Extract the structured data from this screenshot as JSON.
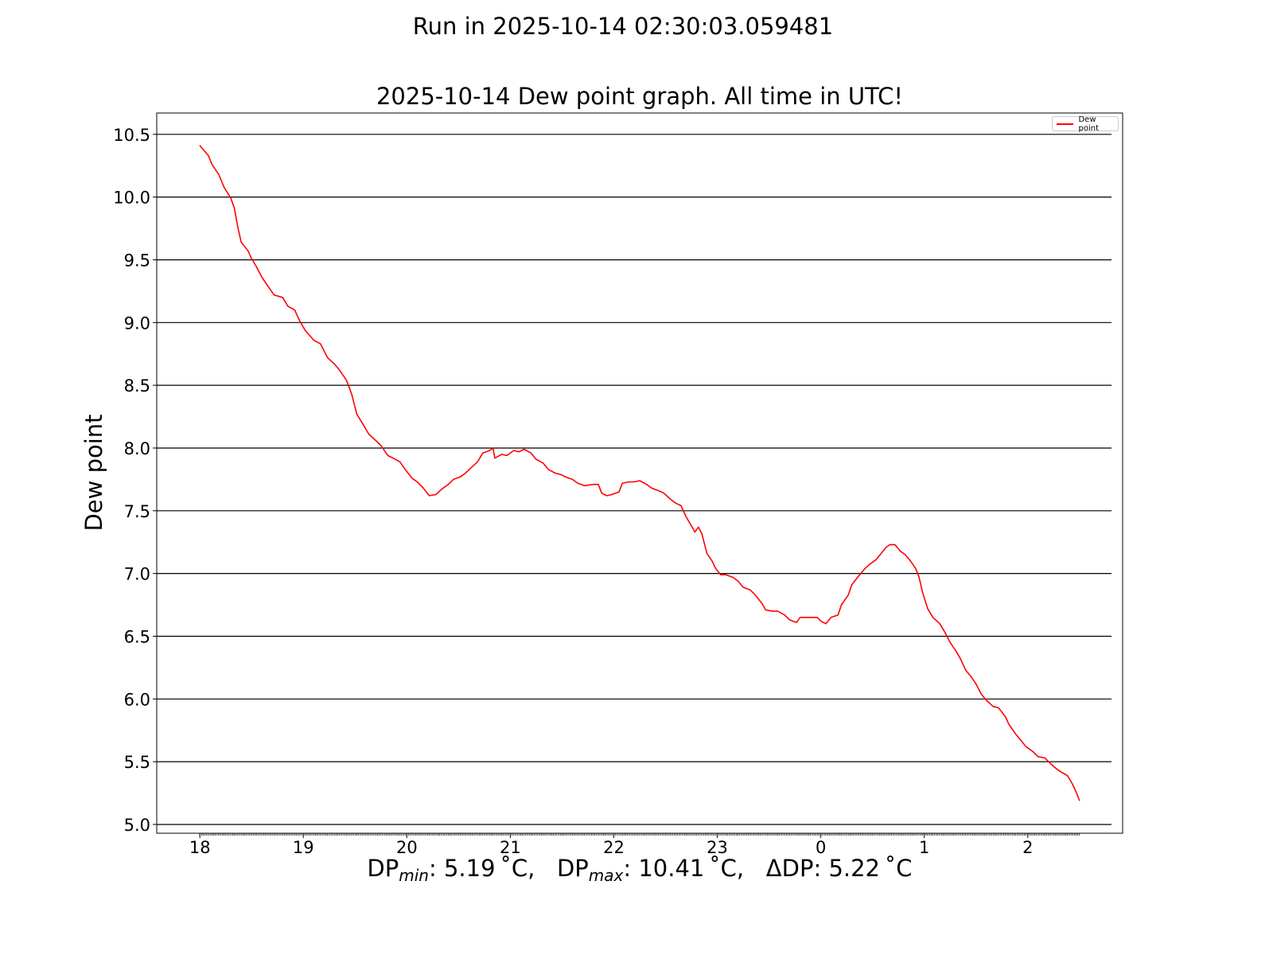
{
  "suptitle": "Run in 2025-10-14 02:30:03.059481",
  "footer": {
    "min_prefix": "DP",
    "min_sub": "min",
    "min_value": ": 5.19 ˚C,   ",
    "max_prefix": "DP",
    "max_sub": "max",
    "max_value": ": 10.41 ˚C,   ",
    "delta": "ΔDP: 5.22 ˚C"
  },
  "chart_data": {
    "type": "line",
    "title": "2025-10-14 Dew point graph. All time in UTC!",
    "xlabel": "",
    "ylabel": "Dew point",
    "ylim": [
      4.93,
      10.67
    ],
    "xlim": [
      "17:35",
      "02:55"
    ],
    "grid": "horizontal",
    "legend_position": "top-right",
    "xticks": [
      "18",
      "19",
      "20",
      "21",
      "22",
      "23",
      "0",
      "1",
      "2"
    ],
    "yticks": [
      "5.0",
      "5.5",
      "6.0",
      "6.5",
      "7.0",
      "7.5",
      "8.0",
      "8.5",
      "9.0",
      "9.5",
      "10.0",
      "10.5"
    ],
    "series": [
      {
        "name": "Dew point",
        "color": "#ff0000",
        "x": [
          "18:00",
          "18:05",
          "18:07",
          "18:11",
          "18:14",
          "18:18",
          "18:20",
          "18:22",
          "18:24",
          "18:28",
          "18:30",
          "18:33",
          "18:36",
          "18:40",
          "18:43",
          "18:48",
          "18:51",
          "18:55",
          "18:58",
          "19:01",
          "19:06",
          "19:10",
          "19:14",
          "19:18",
          "19:21",
          "19:25",
          "19:28",
          "19:31",
          "19:35",
          "19:38",
          "19:42",
          "19:45",
          "19:49",
          "19:52",
          "19:56",
          "19:59",
          "20:03",
          "20:06",
          "20:09",
          "20:13",
          "20:17",
          "20:20",
          "20:24",
          "20:27",
          "20:31",
          "20:34",
          "20:37",
          "20:41",
          "20:44",
          "20:48",
          "20:50",
          "20:51",
          "20:55",
          "20:58",
          "21:02",
          "21:05",
          "21:08",
          "21:12",
          "21:15",
          "21:19",
          "21:22",
          "21:26",
          "21:29",
          "21:32",
          "21:36",
          "21:39",
          "21:43",
          "21:48",
          "21:51",
          "21:53",
          "21:56",
          "21:59",
          "22:03",
          "22:05",
          "22:09",
          "22:12",
          "22:15",
          "22:19",
          "22:22",
          "22:26",
          "22:29",
          "22:33",
          "22:36",
          "22:39",
          "22:42",
          "22:45",
          "22:47",
          "22:49",
          "22:51",
          "22:54",
          "22:57",
          "22:59",
          "23:02",
          "23:05",
          "23:09",
          "23:12",
          "23:15",
          "23:19",
          "23:22",
          "23:26",
          "23:28",
          "23:32",
          "23:35",
          "23:39",
          "23:42",
          "23:46",
          "23:48",
          "23:51",
          "23:55",
          "23:58",
          "00:00",
          "00:03",
          "00:06",
          "00:10",
          "00:12",
          "00:16",
          "00:18",
          "00:22",
          "00:25",
          "00:28",
          "00:32",
          "00:35",
          "00:38",
          "00:40",
          "00:43",
          "00:46",
          "00:49",
          "00:52",
          "00:55",
          "00:57",
          "00:59",
          "01:02",
          "01:05",
          "01:09",
          "01:12",
          "01:15",
          "01:18",
          "01:21",
          "01:24",
          "01:27",
          "01:30",
          "01:33",
          "01:36",
          "01:40",
          "01:43",
          "01:47",
          "01:49",
          "01:53",
          "01:56",
          "01:59",
          "02:03",
          "02:06",
          "02:10",
          "02:12",
          "02:16",
          "02:19",
          "02:23",
          "02:26",
          "02:28",
          "02:30"
        ],
        "y": [
          10.41,
          10.33,
          10.26,
          10.18,
          10.08,
          9.99,
          9.91,
          9.76,
          9.64,
          9.57,
          9.51,
          9.44,
          9.36,
          9.28,
          9.22,
          9.2,
          9.13,
          9.1,
          9.01,
          8.94,
          8.86,
          8.83,
          8.72,
          8.67,
          8.62,
          8.54,
          8.43,
          8.27,
          8.18,
          8.11,
          8.06,
          8.02,
          7.94,
          7.92,
          7.89,
          7.83,
          7.76,
          7.73,
          7.69,
          7.62,
          7.63,
          7.67,
          7.71,
          7.75,
          7.77,
          7.8,
          7.84,
          7.89,
          7.96,
          7.98,
          8.0,
          7.92,
          7.95,
          7.94,
          7.98,
          7.97,
          7.99,
          7.96,
          7.91,
          7.88,
          7.83,
          7.8,
          7.79,
          7.77,
          7.75,
          7.72,
          7.7,
          7.71,
          7.71,
          7.64,
          7.62,
          7.63,
          7.65,
          7.72,
          7.73,
          7.73,
          7.74,
          7.71,
          7.68,
          7.66,
          7.64,
          7.59,
          7.56,
          7.54,
          7.45,
          7.38,
          7.33,
          7.37,
          7.32,
          7.16,
          7.1,
          7.04,
          6.99,
          6.99,
          6.97,
          6.94,
          6.89,
          6.87,
          6.83,
          6.76,
          6.71,
          6.7,
          6.7,
          6.67,
          6.63,
          6.61,
          6.65,
          6.65,
          6.65,
          6.65,
          6.62,
          6.6,
          6.65,
          6.67,
          6.75,
          6.83,
          6.91,
          6.98,
          7.03,
          7.07,
          7.11,
          7.16,
          7.21,
          7.23,
          7.23,
          7.18,
          7.15,
          7.1,
          7.04,
          6.97,
          6.85,
          6.72,
          6.65,
          6.6,
          6.53,
          6.45,
          6.39,
          6.32,
          6.23,
          6.18,
          6.12,
          6.04,
          5.99,
          5.94,
          5.93,
          5.86,
          5.8,
          5.72,
          5.67,
          5.62,
          5.58,
          5.54,
          5.53,
          5.5,
          5.45,
          5.42,
          5.39,
          5.32,
          5.26,
          5.19
        ]
      }
    ]
  }
}
